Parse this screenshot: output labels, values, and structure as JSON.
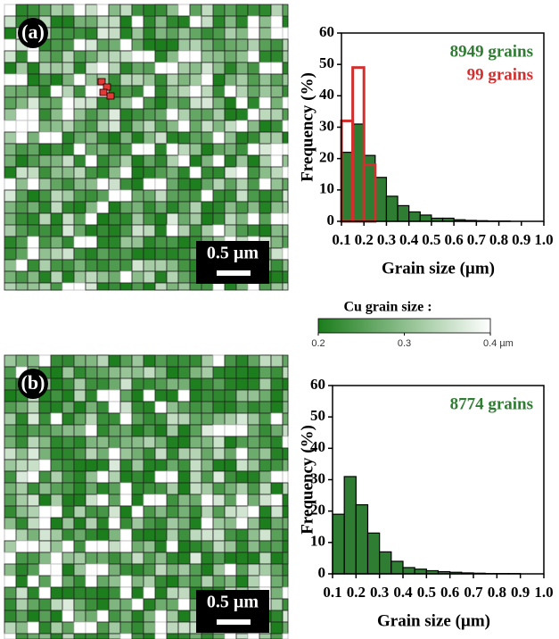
{
  "panels": [
    {
      "label": "(a)",
      "scale_bar": "0.5 µm"
    },
    {
      "label": "(b)",
      "scale_bar": "0.5 µm"
    }
  ],
  "colorbar": {
    "title": "Cu grain size :",
    "lim": [
      0.2,
      0.4
    ],
    "ticks": [
      0.2,
      0.3,
      {
        "value": 0.4,
        "label": "0.4 µm"
      }
    ],
    "colors": [
      "#1b7d1b",
      "#ffffff"
    ]
  },
  "chart_data": [
    {
      "type": "histogram",
      "xlabel": "Grain size (µm)",
      "ylabel": "Frequency (%)",
      "bins": [
        0.1,
        0.15,
        0.2,
        0.25,
        0.3,
        0.35,
        0.4,
        0.45,
        0.5,
        0.55,
        0.6,
        0.65,
        0.7,
        0.75,
        0.8,
        0.85,
        0.9,
        0.95,
        1.0
      ],
      "series": [
        {
          "name": "8949 grains",
          "color": "#2e7d32",
          "values": [
            22,
            31,
            21,
            14,
            8,
            5,
            3,
            2,
            1,
            1,
            0.5,
            0.3,
            0.2,
            0.1,
            0.1,
            0,
            0,
            0
          ]
        },
        {
          "name": "99 grains",
          "color": "#d32f2f",
          "values": [
            32,
            49,
            18,
            0,
            0,
            0,
            0,
            0,
            0,
            0,
            0,
            0,
            0,
            0,
            0,
            0,
            0,
            0
          ]
        }
      ],
      "xlim": [
        0.1,
        1.0
      ],
      "ylim": [
        0,
        60
      ],
      "xticks": [
        0.1,
        0.2,
        0.3,
        0.4,
        0.5,
        0.6,
        0.7,
        0.8,
        0.9,
        {
          "value": 1,
          "label": "1.0"
        }
      ],
      "yticks": [
        0,
        10,
        20,
        30,
        40,
        50,
        60
      ],
      "legend": "upper right"
    },
    {
      "type": "histogram",
      "xlabel": "Grain size (µm)",
      "ylabel": "Frequency (%)",
      "bins": [
        0.1,
        0.15,
        0.2,
        0.25,
        0.3,
        0.35,
        0.4,
        0.45,
        0.5,
        0.55,
        0.6,
        0.65,
        0.7,
        0.75,
        0.8,
        0.85,
        0.9,
        0.95,
        1.0
      ],
      "series": [
        {
          "name": "8774 grains",
          "color": "#2e7d32",
          "values": [
            19,
            31,
            22,
            13,
            7,
            4,
            2,
            1.5,
            1,
            0.7,
            0.5,
            0.3,
            0.2,
            0.1,
            0.1,
            0.1,
            0,
            0
          ]
        }
      ],
      "xlim": [
        0.1,
        1.0
      ],
      "ylim": [
        0,
        60
      ],
      "xticks": [
        0.1,
        0.2,
        0.3,
        0.4,
        0.5,
        0.6,
        0.7,
        0.8,
        0.9,
        {
          "value": 1,
          "label": "1.0"
        }
      ],
      "yticks": [
        0,
        10,
        20,
        30,
        40,
        50,
        60
      ],
      "legend": "upper right"
    }
  ]
}
